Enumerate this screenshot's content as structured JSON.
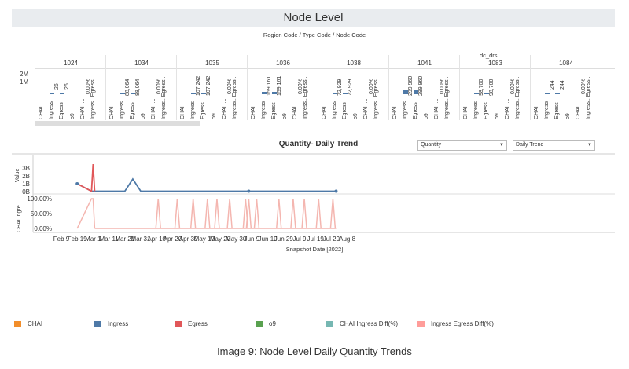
{
  "node_level": {
    "title": "Node Level",
    "subtitle": "Region Code / Type Code / Node Code",
    "group_label": "dc_drs",
    "y_ticks": [
      "2M",
      "1M"
    ],
    "nodes": [
      {
        "code": "1024",
        "ingress": "26",
        "egress": "26",
        "diff": "0.00%"
      },
      {
        "code": "1034",
        "ingress": "88,064",
        "egress": "88,064",
        "diff": "0.00%"
      },
      {
        "code": "1035",
        "ingress": "107,242",
        "egress": "107,242",
        "diff": "0.00%"
      },
      {
        "code": "1036",
        "ingress": "159,161",
        "egress": "159,161",
        "diff": "0.00%"
      },
      {
        "code": "1038",
        "ingress": "72,929",
        "egress": "72,929",
        "diff": "0.00%"
      },
      {
        "code": "1041",
        "ingress": "299,960",
        "egress": "299,960",
        "diff": "0.00%"
      },
      {
        "code": "1083",
        "ingress": "98,700",
        "egress": "98,700",
        "diff": "0.00%"
      },
      {
        "code": "1084",
        "ingress": "244",
        "egress": "244",
        "diff": "0.00%"
      }
    ],
    "row_labels": [
      "CHAI",
      "Ingress",
      "Egress",
      "o9",
      "CHAI I...",
      "Ingress.. Egress.."
    ]
  },
  "daily_trend": {
    "title": "Quantity- Daily Trend",
    "measure_select": "Quantity",
    "view_select": "Daily Trend",
    "value_axis_label": "Value",
    "value_ticks": [
      "3B",
      "2B",
      "1B",
      "0B"
    ],
    "pct_axis_label": "CHAI Ingre...",
    "pct_ticks": [
      "100.00%",
      "50.00%",
      "0.00%"
    ],
    "x_axis_label": "Snapshot Date [2022]",
    "x_ticks": [
      "Feb 9",
      "Feb 19",
      "Mar 1",
      "Mar 11",
      "Mar 21",
      "Mar 31",
      "Apr 10",
      "Apr 20",
      "Apr 30",
      "May 10",
      "May 20",
      "May 30",
      "Jun 9",
      "Jun 19",
      "Jun 29",
      "Jul 9",
      "Jul 19",
      "Jul 29",
      "Aug 8"
    ]
  },
  "chart_data": {
    "type": "line",
    "x_label": "Snapshot Date [2022]",
    "series": [
      {
        "name": "Ingress",
        "color": "#4e79a7",
        "points": [
          [
            "Feb 19",
            1.0
          ],
          [
            "Feb 28",
            0.05
          ],
          [
            "Mar 1",
            0.05
          ],
          [
            "Mar 2",
            0.05
          ],
          [
            "Mar 21",
            0.05
          ],
          [
            "Mar 26",
            1.6
          ],
          [
            "Mar 31",
            0.05
          ],
          [
            "Aug 1",
            0.05
          ]
        ]
      },
      {
        "name": "Egress",
        "color": "#e15759",
        "points": [
          [
            "Feb 19",
            1.0
          ],
          [
            "Feb 28",
            0.05
          ],
          [
            "Mar 1",
            3.5
          ],
          [
            "Mar 2",
            0.05
          ]
        ]
      }
    ],
    "pct_series": {
      "name": "Ingress Egress Diff(%)",
      "color": "#f4b6b0",
      "spikes": [
        "Apr 11",
        "Apr 23",
        "May 3",
        "May 12",
        "May 18",
        "May 26",
        "Jun 5",
        "Jun 7",
        "Jun 12",
        "Jun 26",
        "Jul 5",
        "Jul 12",
        "Jul 21",
        "Jul 30"
      ]
    },
    "value_unit": "B",
    "value_range": [
      0,
      3.8
    ]
  },
  "legend": [
    {
      "label": "CHAI",
      "color": "#f28e2b"
    },
    {
      "label": "Ingress",
      "color": "#4e79a7"
    },
    {
      "label": "Egress",
      "color": "#e15759"
    },
    {
      "label": "o9",
      "color": "#59a14f"
    },
    {
      "label": "CHAI Ingress Diff(%)",
      "color": "#76b7b2"
    },
    {
      "label": "Ingress Egress Diff(%)",
      "color": "#ff9d9a"
    }
  ],
  "caption": "Image 9: Node Level Daily Quantity Trends"
}
